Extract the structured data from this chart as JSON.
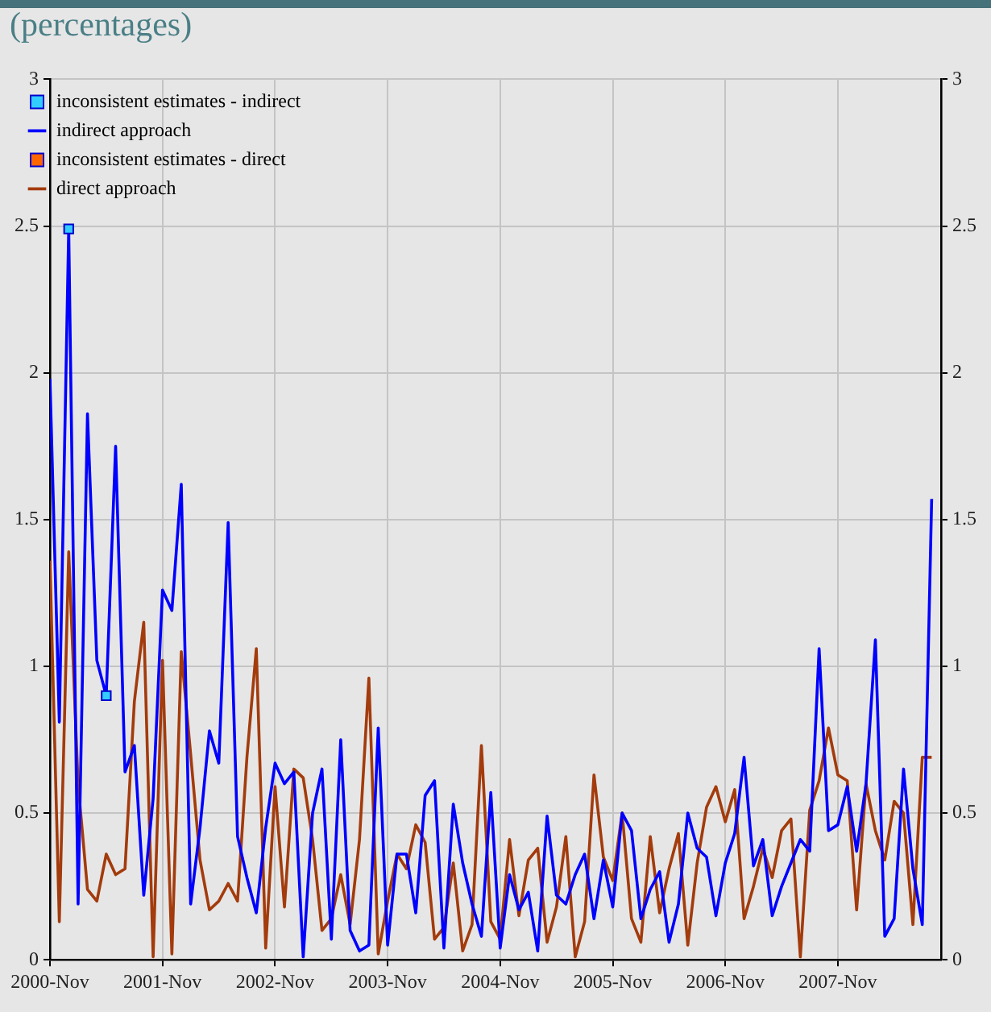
{
  "chart_data": {
    "type": "line",
    "title": "(percentages)",
    "x": [
      "2000-11",
      "2000-12",
      "2001-01",
      "2001-02",
      "2001-03",
      "2001-04",
      "2001-05",
      "2001-06",
      "2001-07",
      "2001-08",
      "2001-09",
      "2001-10",
      "2001-11",
      "2001-12",
      "2002-01",
      "2002-02",
      "2002-03",
      "2002-04",
      "2002-05",
      "2002-06",
      "2002-07",
      "2002-08",
      "2002-09",
      "2002-10",
      "2002-11",
      "2002-12",
      "2003-01",
      "2003-02",
      "2003-03",
      "2003-04",
      "2003-05",
      "2003-06",
      "2003-07",
      "2003-08",
      "2003-09",
      "2003-10",
      "2003-11",
      "2003-12",
      "2004-01",
      "2004-02",
      "2004-03",
      "2004-04",
      "2004-05",
      "2004-06",
      "2004-07",
      "2004-08",
      "2004-09",
      "2004-10",
      "2004-11",
      "2004-12",
      "2005-01",
      "2005-02",
      "2005-03",
      "2005-04",
      "2005-05",
      "2005-06",
      "2005-07",
      "2005-08",
      "2005-09",
      "2005-10",
      "2005-11",
      "2005-12",
      "2006-01",
      "2006-02",
      "2006-03",
      "2006-04",
      "2006-05",
      "2006-06",
      "2006-07",
      "2006-08",
      "2006-09",
      "2006-10",
      "2006-11",
      "2006-12",
      "2007-01",
      "2007-02",
      "2007-03",
      "2007-04",
      "2007-05",
      "2007-06",
      "2007-07",
      "2007-08",
      "2007-09",
      "2007-10",
      "2007-11",
      "2007-12",
      "2008-01",
      "2008-02",
      "2008-03",
      "2008-04",
      "2008-05",
      "2008-06",
      "2008-07",
      "2008-08",
      "2008-09"
    ],
    "series": [
      {
        "name": "inconsistent estimates - indirect",
        "type": "scatter",
        "marker": "square",
        "color": "#33ccff",
        "x": [
          "2001-01",
          "2001-05"
        ],
        "values": [
          2.49,
          0.9
        ]
      },
      {
        "name": "indirect approach",
        "color": "#0000ff",
        "values": [
          1.98,
          0.81,
          2.49,
          0.19,
          1.86,
          1.02,
          0.9,
          1.75,
          0.64,
          0.73,
          0.22,
          0.55,
          1.26,
          1.19,
          1.62,
          0.19,
          0.45,
          0.78,
          0.67,
          1.49,
          0.42,
          0.28,
          0.16,
          0.45,
          0.67,
          0.6,
          0.64,
          0.01,
          0.5,
          0.65,
          0.07,
          0.75,
          0.1,
          0.03,
          0.05,
          0.79,
          0.05,
          0.36,
          0.36,
          0.16,
          0.56,
          0.61,
          0.04,
          0.53,
          0.33,
          0.19,
          0.08,
          0.57,
          0.04,
          0.29,
          0.17,
          0.23,
          0.03,
          0.49,
          0.22,
          0.19,
          0.29,
          0.36,
          0.14,
          0.34,
          0.18,
          0.5,
          0.44,
          0.14,
          0.24,
          0.3,
          0.06,
          0.19,
          0.5,
          0.38,
          0.35,
          0.15,
          0.33,
          0.43,
          0.69,
          0.32,
          0.41,
          0.15,
          0.25,
          0.33,
          0.41,
          0.37,
          1.06,
          0.44,
          0.46,
          0.59,
          0.37,
          0.6,
          1.09,
          0.08,
          0.14,
          0.65,
          0.31,
          0.12,
          1.57
        ]
      },
      {
        "name": "inconsistent estimates - direct",
        "type": "scatter",
        "marker": "square",
        "color": "#ff6600",
        "values": [
          null,
          null,
          null,
          null,
          null,
          null,
          null,
          null,
          null,
          null,
          null,
          null,
          null,
          null,
          null,
          null,
          null,
          null,
          null,
          null,
          null,
          null,
          null,
          null,
          null,
          null,
          null,
          null,
          null,
          null,
          null,
          null,
          null,
          null,
          null,
          null,
          null,
          null,
          null,
          null,
          null,
          null,
          null,
          null,
          null,
          null,
          null,
          null,
          null,
          null,
          null,
          null,
          null,
          null,
          null,
          null,
          null,
          null,
          null,
          null,
          null,
          null,
          null,
          null,
          null,
          null,
          null,
          null,
          null,
          null,
          null,
          null,
          null,
          null,
          null,
          null,
          null,
          null,
          null,
          null,
          null,
          null,
          null,
          null,
          null,
          null,
          null,
          null,
          null,
          null,
          null,
          null,
          null,
          null,
          null
        ]
      },
      {
        "name": "direct approach",
        "color": "#a33b0c",
        "values": [
          1.36,
          0.13,
          1.39,
          0.6,
          0.24,
          0.2,
          0.36,
          0.29,
          0.31,
          0.88,
          1.15,
          0.01,
          1.02,
          0.02,
          1.05,
          0.7,
          0.34,
          0.17,
          0.2,
          0.26,
          0.2,
          0.69,
          1.06,
          0.04,
          0.59,
          0.18,
          0.65,
          0.62,
          0.41,
          0.1,
          0.14,
          0.29,
          0.12,
          0.41,
          0.96,
          0.02,
          0.2,
          0.36,
          0.31,
          0.46,
          0.4,
          0.07,
          0.11,
          0.33,
          0.03,
          0.12,
          0.73,
          0.13,
          0.07,
          0.41,
          0.15,
          0.34,
          0.38,
          0.06,
          0.18,
          0.42,
          0.01,
          0.13,
          0.63,
          0.35,
          0.27,
          0.5,
          0.14,
          0.06,
          0.42,
          0.16,
          0.31,
          0.43,
          0.05,
          0.33,
          0.52,
          0.59,
          0.47,
          0.58,
          0.14,
          0.25,
          0.38,
          0.28,
          0.44,
          0.48,
          0.01,
          0.51,
          0.61,
          0.79,
          0.63,
          0.61,
          0.17,
          0.6,
          0.44,
          0.34,
          0.54,
          0.5,
          0.12,
          0.69,
          0.69
        ]
      }
    ],
    "xlim": [
      "2000-11",
      "2008-10"
    ],
    "xticks": [
      {
        "value": "2000-11",
        "label": "2000-Nov"
      },
      {
        "value": "2001-11",
        "label": "2001-Nov"
      },
      {
        "value": "2002-11",
        "label": "2002-Nov"
      },
      {
        "value": "2003-11",
        "label": "2003-Nov"
      },
      {
        "value": "2004-11",
        "label": "2004-Nov"
      },
      {
        "value": "2005-11",
        "label": "2005-Nov"
      },
      {
        "value": "2006-11",
        "label": "2006-Nov"
      },
      {
        "value": "2007-11",
        "label": "2007-Nov"
      }
    ],
    "ylim": [
      0,
      3
    ],
    "yticks": [
      0,
      0.5,
      1,
      1.5,
      2,
      2.5,
      3
    ],
    "y2lim": [
      0,
      3
    ],
    "y2ticks": [
      0,
      0.5,
      1,
      1.5,
      2,
      2.5,
      3
    ],
    "grid": true,
    "legend": "top",
    "marker": "none",
    "line_style": "solid"
  }
}
